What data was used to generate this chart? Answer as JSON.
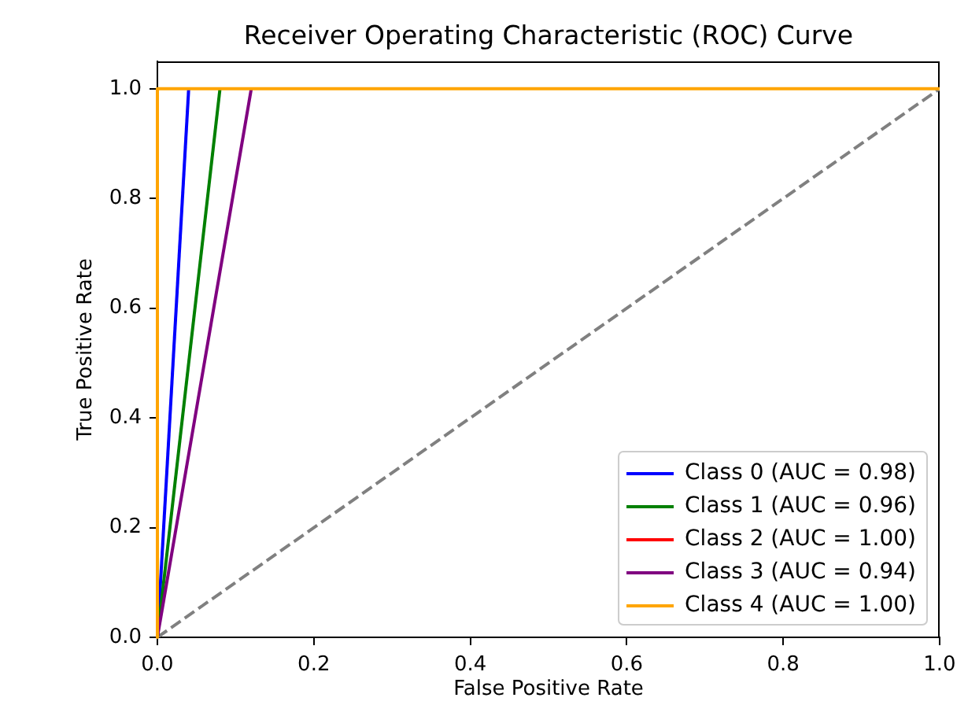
{
  "chart_data": {
    "type": "line",
    "title": "Receiver Operating Characteristic (ROC) Curve",
    "xlabel": "False Positive Rate",
    "ylabel": "True Positive Rate",
    "xlim": [
      0,
      1
    ],
    "ylim": [
      0,
      1.05
    ],
    "xticks": [
      {
        "value": 0,
        "label": "0.0"
      },
      0.2,
      0.4,
      0.6,
      0.8,
      {
        "value": 1,
        "label": "1.0"
      }
    ],
    "yticks": [
      {
        "value": 0,
        "label": "0.0"
      },
      0.2,
      0.4,
      0.6,
      0.8,
      {
        "value": 1,
        "label": "1.0"
      }
    ],
    "legend": "bottom right",
    "series": [
      {
        "color": "#808080",
        "line_style": "dashed",
        "x": [
          0,
          1
        ],
        "values": [
          0,
          1
        ]
      },
      {
        "name": "Class 0 (AUC = 0.98)",
        "color": "#0000ff",
        "x": [
          0,
          0.04
        ],
        "values": [
          0,
          1
        ]
      },
      {
        "name": "Class 1 (AUC = 0.96)",
        "color": "#008000",
        "x": [
          0,
          0.08
        ],
        "values": [
          0,
          1
        ]
      },
      {
        "name": "Class 2 (AUC = 1.00)",
        "color": "#ff0000"
      },
      {
        "name": "Class 3 (AUC = 0.94)",
        "color": "#800080",
        "x": [
          0,
          0.12
        ],
        "values": [
          0,
          1
        ]
      },
      {
        "name": "Class 4 (AUC = 1.00)",
        "color": "#ffa500",
        "x": [
          1,
          0,
          0
        ],
        "values": [
          1,
          1,
          0
        ]
      }
    ]
  }
}
